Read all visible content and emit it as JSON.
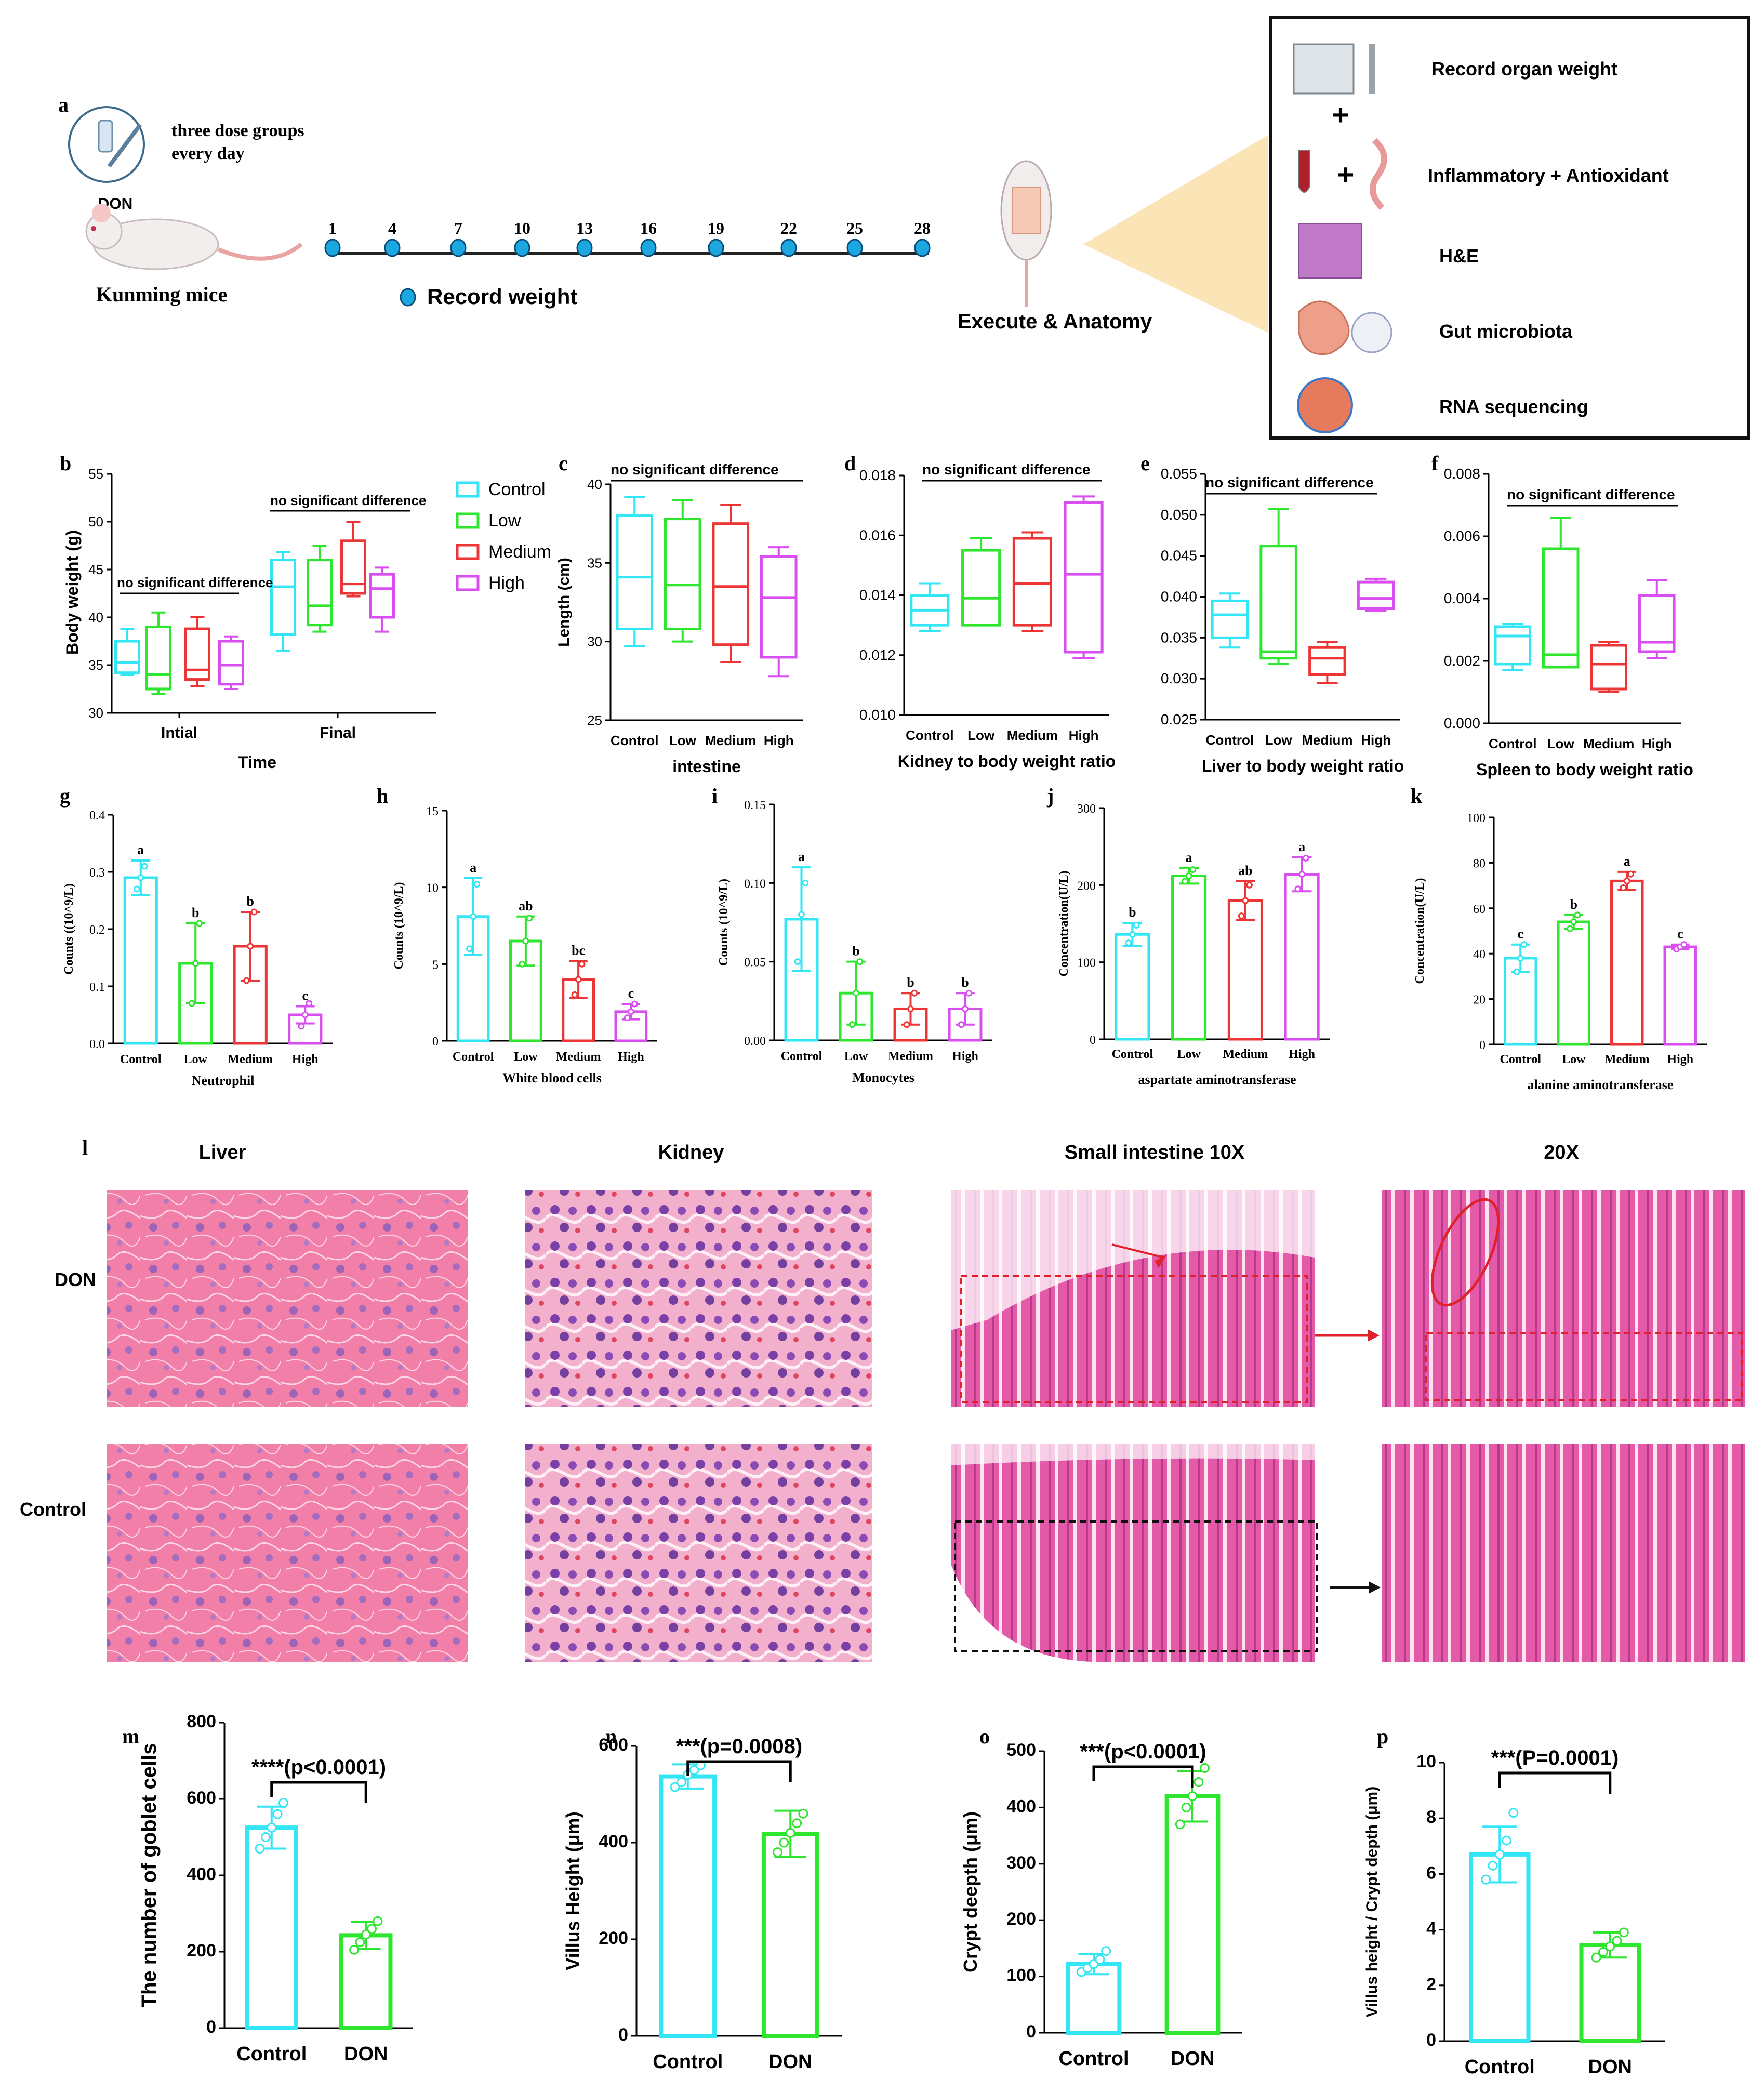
{
  "colors": {
    "control": "#33e6f5",
    "low": "#2ee62e",
    "medium": "#ee3535",
    "high": "#d94ef0",
    "axis": "#000000",
    "tissue_pink": "#ef7fb2",
    "nucleus": "#7d3aa6"
  },
  "panel_a": {
    "letter": "a",
    "inject_text": [
      "three dose groups",
      "every day"
    ],
    "don_label": "DON",
    "mice_label": "Kunming mice",
    "days": [
      "1",
      "4",
      "7",
      "10",
      "13",
      "16",
      "19",
      "22",
      "25",
      "28"
    ],
    "record_weight": "Record weight",
    "execute": "Execute & Anatomy",
    "box_items": [
      "Record organ weight",
      "Inflammatory + Antioxidant",
      "H&E",
      "Gut microbiota",
      "RNA sequencing"
    ],
    "plus": "+"
  },
  "legend": [
    "Control",
    "Low",
    "Medium",
    "High"
  ],
  "chart_data": [
    {
      "id": "b",
      "type": "box",
      "title": "",
      "ylabel": "Body weight (g)",
      "xlabel": "Time",
      "ylim": [
        30,
        55
      ],
      "yticks": [
        30,
        35,
        40,
        45,
        50,
        55
      ],
      "groups": [
        "Intial",
        "Final"
      ],
      "annotations": [
        "no significant difference",
        "no significant difference"
      ],
      "series": [
        {
          "name": "Control",
          "boxes": [
            {
              "min": 34.0,
              "q1": 34.2,
              "median": 35.3,
              "q3": 37.5,
              "max": 38.8
            },
            {
              "min": 36.5,
              "q1": 38.2,
              "median": 43.2,
              "q3": 46.0,
              "max": 46.8
            }
          ]
        },
        {
          "name": "Low",
          "boxes": [
            {
              "min": 32.0,
              "q1": 32.5,
              "median": 34.0,
              "q3": 39.0,
              "max": 40.5
            },
            {
              "min": 38.5,
              "q1": 39.2,
              "median": 41.2,
              "q3": 46.0,
              "max": 47.5
            }
          ]
        },
        {
          "name": "Medium",
          "boxes": [
            {
              "min": 32.8,
              "q1": 33.5,
              "median": 34.5,
              "q3": 38.8,
              "max": 40.0
            },
            {
              "min": 42.2,
              "q1": 42.5,
              "median": 43.5,
              "q3": 48.0,
              "max": 50.0
            }
          ]
        },
        {
          "name": "High",
          "boxes": [
            {
              "min": 32.5,
              "q1": 33.0,
              "median": 35.0,
              "q3": 37.5,
              "max": 38.0
            },
            {
              "min": 38.5,
              "q1": 40.0,
              "median": 43.0,
              "q3": 44.5,
              "max": 45.2
            }
          ]
        }
      ]
    },
    {
      "id": "c",
      "type": "box",
      "title": "",
      "ylabel": "Length (cm)",
      "xlabel": "intestine",
      "ylim": [
        25,
        40
      ],
      "yticks": [
        25,
        30,
        35,
        40
      ],
      "categories": [
        "Control",
        "Low",
        "Medium",
        "High"
      ],
      "annotation": "no significant difference",
      "boxes": [
        {
          "min": 29.7,
          "q1": 30.8,
          "median": 34.1,
          "q3": 38.0,
          "max": 39.2
        },
        {
          "min": 30.0,
          "q1": 30.8,
          "median": 33.6,
          "q3": 37.8,
          "max": 39.0
        },
        {
          "min": 28.7,
          "q1": 29.8,
          "median": 33.5,
          "q3": 37.5,
          "max": 38.7
        },
        {
          "min": 27.8,
          "q1": 29.0,
          "median": 32.8,
          "q3": 35.4,
          "max": 36.0
        }
      ]
    },
    {
      "id": "d",
      "type": "box",
      "title": "",
      "ylabel": "",
      "xlabel": "Kidney to body weight ratio",
      "ylim": [
        0.01,
        0.018
      ],
      "yticks": [
        "0.010",
        "0.012",
        "0.014",
        "0.016",
        "0.018"
      ],
      "categories": [
        "Control",
        "Low",
        "Medium",
        "High"
      ],
      "annotation": "no significant difference",
      "boxes": [
        {
          "min": 0.0128,
          "q1": 0.013,
          "median": 0.0135,
          "q3": 0.014,
          "max": 0.0144
        },
        {
          "min": 0.013,
          "q1": 0.013,
          "median": 0.0139,
          "q3": 0.0155,
          "max": 0.0159
        },
        {
          "min": 0.0128,
          "q1": 0.013,
          "median": 0.0144,
          "q3": 0.0159,
          "max": 0.0161
        },
        {
          "min": 0.0119,
          "q1": 0.0121,
          "median": 0.0147,
          "q3": 0.0171,
          "max": 0.0173
        }
      ]
    },
    {
      "id": "e",
      "type": "box",
      "title": "",
      "ylabel": "",
      "xlabel": "Liver to body weight ratio",
      "ylim": [
        0.025,
        0.055
      ],
      "yticks": [
        "0.025",
        "0.030",
        "0.035",
        "0.040",
        "0.045",
        "0.050",
        "0.055"
      ],
      "categories": [
        "Control",
        "Low",
        "Medium",
        "High"
      ],
      "annotation": "no significant difference",
      "boxes": [
        {
          "min": 0.0338,
          "q1": 0.035,
          "median": 0.0378,
          "q3": 0.0395,
          "max": 0.0404
        },
        {
          "min": 0.0318,
          "q1": 0.0325,
          "median": 0.0333,
          "q3": 0.0462,
          "max": 0.0507
        },
        {
          "min": 0.0295,
          "q1": 0.0305,
          "median": 0.0325,
          "q3": 0.0338,
          "max": 0.0345
        },
        {
          "min": 0.0383,
          "q1": 0.0386,
          "median": 0.0398,
          "q3": 0.0418,
          "max": 0.0422
        }
      ]
    },
    {
      "id": "f",
      "type": "box",
      "title": "",
      "ylabel": "",
      "xlabel": "Spleen to body weight ratio",
      "ylim": [
        0,
        0.008
      ],
      "yticks": [
        "0.000",
        "0.002",
        "0.004",
        "0.006",
        "0.008"
      ],
      "categories": [
        "Control",
        "Low",
        "Medium",
        "High"
      ],
      "annotation": "no significant difference",
      "boxes": [
        {
          "min": 0.0017,
          "q1": 0.0019,
          "median": 0.0028,
          "q3": 0.0031,
          "max": 0.0032
        },
        {
          "min": 0.0018,
          "q1": 0.0018,
          "median": 0.0022,
          "q3": 0.0056,
          "max": 0.0066
        },
        {
          "min": 0.001,
          "q1": 0.0011,
          "median": 0.0019,
          "q3": 0.0025,
          "max": 0.0026
        },
        {
          "min": 0.0021,
          "q1": 0.0023,
          "median": 0.0026,
          "q3": 0.0041,
          "max": 0.0046
        }
      ]
    },
    {
      "id": "g",
      "type": "bar",
      "ylabel": "Counts ((10^9/L)",
      "xlabel": "Neutrophil",
      "ylim": [
        0,
        0.4
      ],
      "yticks": [
        "0.0",
        "0.1",
        "0.2",
        "0.3",
        "0.4"
      ],
      "categories": [
        "Control",
        "Low",
        "Medium",
        "High"
      ],
      "values": [
        0.29,
        0.14,
        0.17,
        0.05
      ],
      "errors": [
        0.03,
        0.07,
        0.06,
        0.015
      ],
      "letters": [
        "a",
        "b",
        "b",
        "c"
      ],
      "points": [
        [
          0.27,
          0.29,
          0.31
        ],
        [
          0.07,
          0.14,
          0.21
        ],
        [
          0.11,
          0.17,
          0.23
        ],
        [
          0.03,
          0.05,
          0.07
        ]
      ]
    },
    {
      "id": "h",
      "type": "bar",
      "ylabel": "Counts (10^9/L)",
      "xlabel": "White blood cells",
      "ylim": [
        0,
        15
      ],
      "yticks": [
        "0",
        "5",
        "10",
        "15"
      ],
      "categories": [
        "Control",
        "Low",
        "Medium",
        "High"
      ],
      "values": [
        8.1,
        6.5,
        4.0,
        1.9
      ],
      "errors": [
        2.5,
        1.6,
        1.2,
        0.5
      ],
      "letters": [
        "a",
        "ab",
        "bc",
        "c"
      ],
      "points": [
        [
          6.0,
          8.1,
          10.2
        ],
        [
          5.0,
          6.5,
          8.0
        ],
        [
          3.0,
          4.0,
          5.0
        ],
        [
          1.5,
          1.9,
          2.4
        ]
      ]
    },
    {
      "id": "i",
      "type": "bar",
      "ylabel": "Counts (10^9/L)",
      "xlabel": "Monocytes",
      "ylim": [
        0,
        0.15
      ],
      "yticks": [
        "0.00",
        "0.05",
        "0.10",
        "0.15"
      ],
      "categories": [
        "Control",
        "Low",
        "Medium",
        "High"
      ],
      "values": [
        0.077,
        0.03,
        0.02,
        0.02
      ],
      "errors": [
        0.033,
        0.02,
        0.01,
        0.01
      ],
      "letters": [
        "a",
        "b",
        "b",
        "b"
      ],
      "points": [
        [
          0.05,
          0.08,
          0.1
        ],
        [
          0.01,
          0.03,
          0.05
        ],
        [
          0.01,
          0.02,
          0.03
        ],
        [
          0.01,
          0.02,
          0.03
        ]
      ]
    },
    {
      "id": "j",
      "type": "bar",
      "ylabel": "Concentration(U/L)",
      "xlabel": "aspartate aminotransferase",
      "ylim": [
        0,
        300
      ],
      "yticks": [
        "0",
        "100",
        "200",
        "300"
      ],
      "categories": [
        "Control",
        "Low",
        "Medium",
        "High"
      ],
      "values": [
        136,
        212,
        180,
        214
      ],
      "errors": [
        15,
        10,
        25,
        22
      ],
      "letters": [
        "b",
        "a",
        "ab",
        "a"
      ],
      "points": [
        [
          125,
          136,
          148
        ],
        [
          205,
          212,
          220
        ],
        [
          160,
          180,
          200
        ],
        [
          195,
          214,
          235
        ]
      ]
    },
    {
      "id": "k",
      "type": "bar",
      "ylabel": "Concentration(U/L)",
      "xlabel": "alanine aminotransferase",
      "ylim": [
        0,
        100
      ],
      "yticks": [
        "0",
        "20",
        "40",
        "60",
        "80",
        "100"
      ],
      "categories": [
        "Control",
        "Low",
        "Medium",
        "High"
      ],
      "values": [
        38,
        54,
        72,
        43
      ],
      "errors": [
        6,
        3,
        4,
        1
      ],
      "letters": [
        "c",
        "b",
        "a",
        "c"
      ],
      "points": [
        [
          32,
          38,
          44
        ],
        [
          51,
          54,
          57
        ],
        [
          69,
          72,
          75
        ],
        [
          42,
          43,
          44
        ]
      ]
    },
    {
      "id": "m",
      "type": "bar",
      "ylabel": "The number of goblet cells",
      "xlabel": "",
      "ylim": [
        0,
        800
      ],
      "yticks": [
        "0",
        "200",
        "400",
        "600",
        "800"
      ],
      "categories": [
        "Control",
        "DON"
      ],
      "values": [
        525,
        243
      ],
      "errors": [
        55,
        35
      ],
      "significance": "****(p<0.0001)",
      "points": [
        [
          470,
          500,
          525,
          560,
          590
        ],
        [
          205,
          225,
          245,
          260,
          280
        ]
      ]
    },
    {
      "id": "n",
      "type": "bar",
      "ylabel": "Villus Height (μm)",
      "xlabel": "",
      "ylim": [
        0,
        600
      ],
      "yticks": [
        "0",
        "200",
        "400",
        "600"
      ],
      "categories": [
        "Control",
        "DON"
      ],
      "values": [
        537,
        418
      ],
      "errors": [
        25,
        48
      ],
      "significance": "***(p=0.0008)",
      "points": [
        [
          515,
          525,
          540,
          550,
          560
        ],
        [
          380,
          400,
          420,
          440,
          460
        ]
      ]
    },
    {
      "id": "o",
      "type": "bar",
      "ylabel": "Crypt deepth (μm)",
      "xlabel": "",
      "ylim": [
        0,
        500
      ],
      "yticks": [
        "0",
        "100",
        "200",
        "300",
        "400",
        "500"
      ],
      "categories": [
        "Control",
        "DON"
      ],
      "values": [
        122,
        420
      ],
      "errors": [
        18,
        45
      ],
      "significance": "***(p<0.0001)",
      "points": [
        [
          108,
          115,
          122,
          130,
          145
        ],
        [
          370,
          400,
          420,
          445,
          470
        ]
      ]
    },
    {
      "id": "p",
      "type": "bar",
      "ylabel": "Villus height / Crypt depth (μm)",
      "xlabel": "",
      "ylim": [
        0,
        10
      ],
      "yticks": [
        "0",
        "2",
        "4",
        "6",
        "8",
        "10"
      ],
      "categories": [
        "Control",
        "DON"
      ],
      "values": [
        6.7,
        3.45
      ],
      "errors": [
        1.0,
        0.45
      ],
      "significance": "***(P=0.0001)",
      "points": [
        [
          5.8,
          6.3,
          6.7,
          7.2,
          8.2
        ],
        [
          3.0,
          3.2,
          3.4,
          3.6,
          3.9
        ]
      ]
    }
  ],
  "panel_l": {
    "letter": "l",
    "columns": [
      "Liver",
      "Kidney",
      "Small intestine  10X",
      "20X"
    ],
    "rows": [
      "DON",
      "Control"
    ]
  }
}
